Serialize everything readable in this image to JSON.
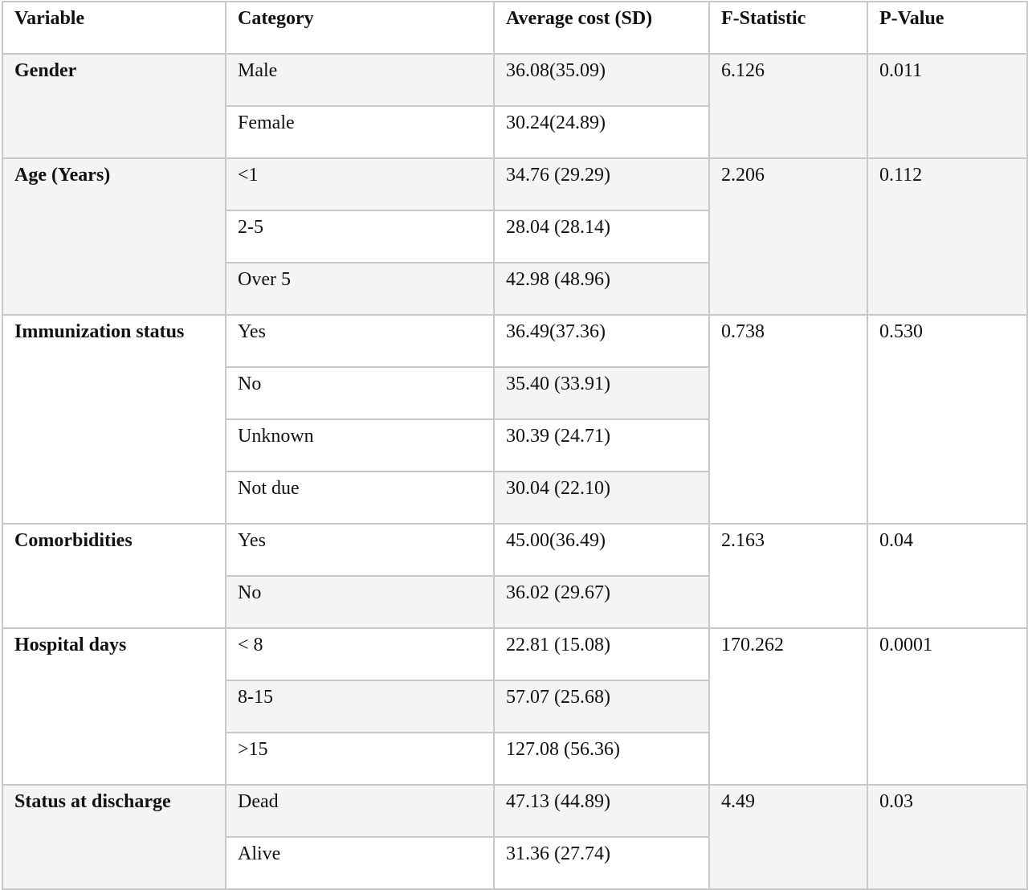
{
  "headers": [
    "Variable",
    "Category",
    "Average cost (SD)",
    "F-Statistic",
    "P-Value"
  ],
  "groups": [
    {
      "variable": "Gender",
      "f_statistic": "6.126",
      "p_value": "0.011",
      "rows": [
        {
          "category": "Male",
          "cost": "36.08(35.09)"
        },
        {
          "category": "Female",
          "cost": "30.24(24.89)"
        }
      ]
    },
    {
      "variable": "Age (Years)",
      "f_statistic": "2.206",
      "p_value": "0.112",
      "rows": [
        {
          "category": "<1",
          "cost": "34.76 (29.29)"
        },
        {
          "category": "2-5",
          "cost": "28.04 (28.14)"
        },
        {
          "category": "Over 5",
          "cost": "42.98 (48.96)"
        }
      ]
    },
    {
      "variable": "Immunization status",
      "f_statistic": "0.738",
      "p_value": "0.530",
      "rows": [
        {
          "category": "Yes",
          "cost": "36.49(37.36)"
        },
        {
          "category": "No",
          "cost": "35.40 (33.91)"
        },
        {
          "category": "Unknown",
          "cost": "30.39 (24.71)"
        },
        {
          "category": "Not due",
          "cost": "30.04 (22.10)"
        }
      ]
    },
    {
      "variable": "Comorbidities",
      "f_statistic": "2.163",
      "p_value": "0.04",
      "rows": [
        {
          "category": "Yes",
          "cost": "45.00(36.49)"
        },
        {
          "category": "No",
          "cost": "36.02 (29.67)"
        }
      ]
    },
    {
      "variable": "Hospital days",
      "f_statistic": "170.262",
      "p_value": "0.0001",
      "rows": [
        {
          "category": "< 8",
          "cost": "22.81 (15.08)"
        },
        {
          "category": "8-15",
          "cost": "57.07 (25.68)"
        },
        {
          "category": ">15",
          "cost": "127.08 (56.36)"
        }
      ]
    },
    {
      "variable": "Status at discharge",
      "f_statistic": "4.49",
      "p_value": "0.03",
      "rows": [
        {
          "category": "Dead",
          "cost": "47.13 (44.89)"
        },
        {
          "category": "Alive",
          "cost": " 31.36 (27.74)"
        }
      ]
    }
  ]
}
